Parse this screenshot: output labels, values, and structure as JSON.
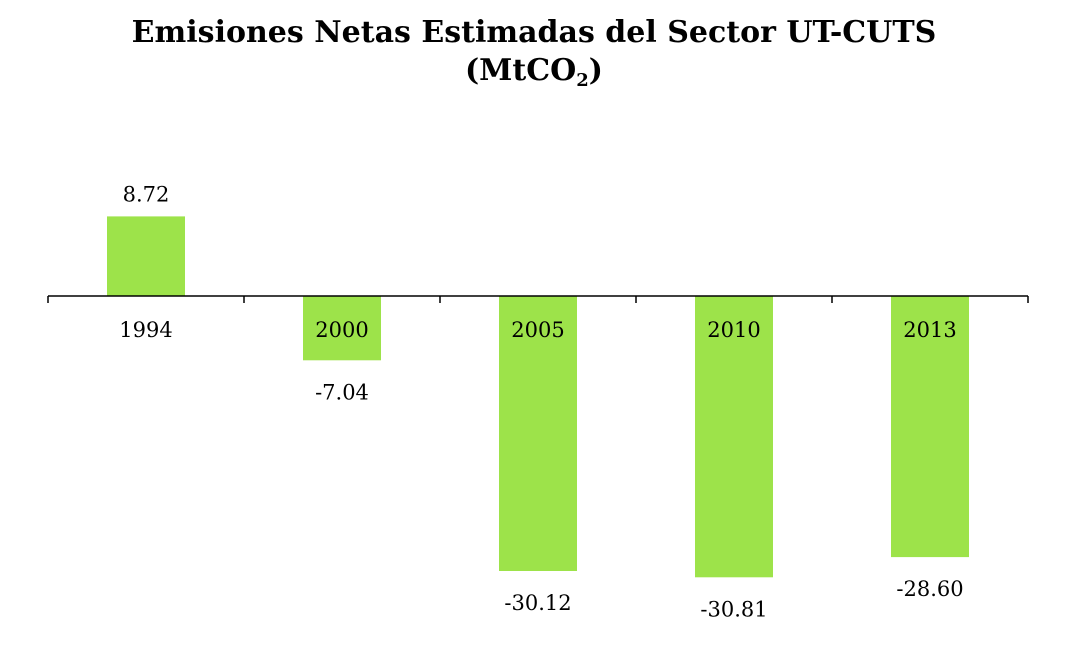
{
  "chart_data": {
    "type": "bar",
    "title": "Emisiones Netas Estimadas del Sector UT-CUTS",
    "subtitle_prefix": "(MtCO",
    "subtitle_sub": "2",
    "subtitle_suffix": ")",
    "categories": [
      "1994",
      "2000",
      "2005",
      "2010",
      "2013"
    ],
    "values": [
      8.72,
      -7.04,
      -30.12,
      -30.81,
      -28.6
    ],
    "data_labels": [
      "8.72",
      "-7.04",
      "-30.12",
      "-30.81",
      "-28.60"
    ],
    "xlabel": "",
    "ylabel": "",
    "ylim": [
      -33,
      13
    ],
    "grid": false,
    "legend": "none",
    "bar_color": "#9de34a",
    "axis_color": "#000000"
  }
}
